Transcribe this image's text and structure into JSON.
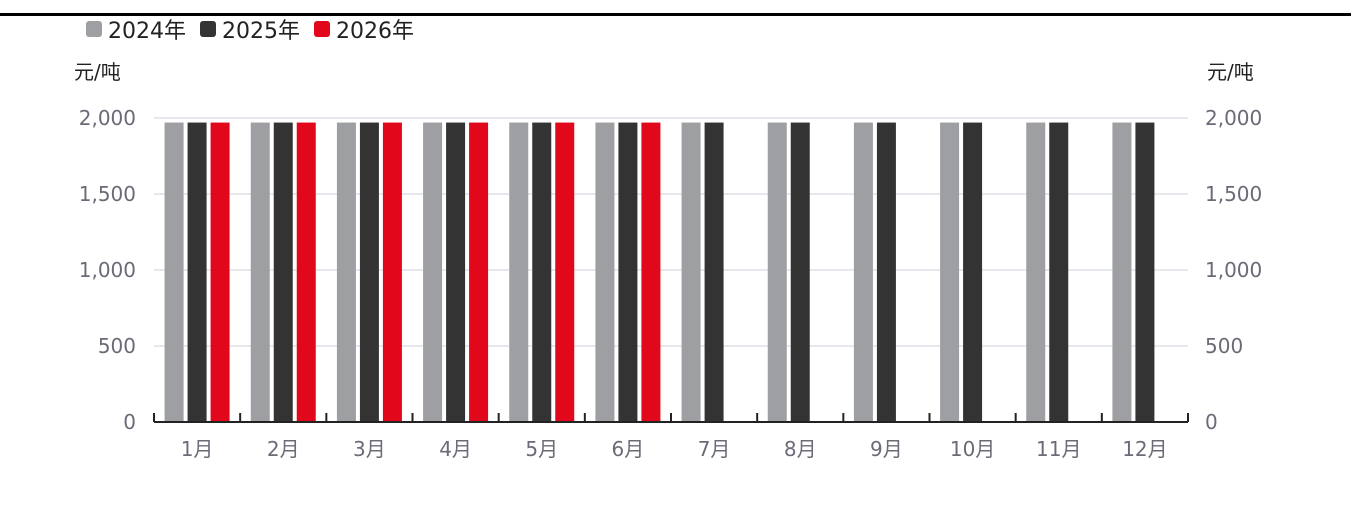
{
  "chart_data": {
    "type": "bar",
    "categories": [
      "1月",
      "2月",
      "3月",
      "4月",
      "5月",
      "6月",
      "7月",
      "8月",
      "9月",
      "10月",
      "11月",
      "12月"
    ],
    "series": [
      {
        "name": "2024年",
        "color": "#9d9fa2",
        "values": [
          1970,
          1970,
          1970,
          1970,
          1970,
          1970,
          1970,
          1970,
          1970,
          1970,
          1970,
          1970
        ]
      },
      {
        "name": "2025年",
        "color": "#333333",
        "values": [
          1970,
          1970,
          1970,
          1970,
          1970,
          1970,
          1970,
          1970,
          1970,
          1970,
          1970,
          1970
        ]
      },
      {
        "name": "2026年",
        "color": "#e0081a",
        "values": [
          1970,
          1970,
          1970,
          1970,
          1970,
          1970,
          null,
          null,
          null,
          null,
          null,
          null
        ]
      }
    ],
    "y_ticks": [
      "0",
      "500",
      "1,000",
      "1,500",
      "2,000"
    ],
    "y_tick_values": [
      0,
      500,
      1000,
      1500,
      2000
    ],
    "ylim": [
      0,
      2000
    ],
    "ylabel_left": "元/吨",
    "ylabel_right": "元/吨",
    "legend_position": "top-left",
    "grid": true
  }
}
